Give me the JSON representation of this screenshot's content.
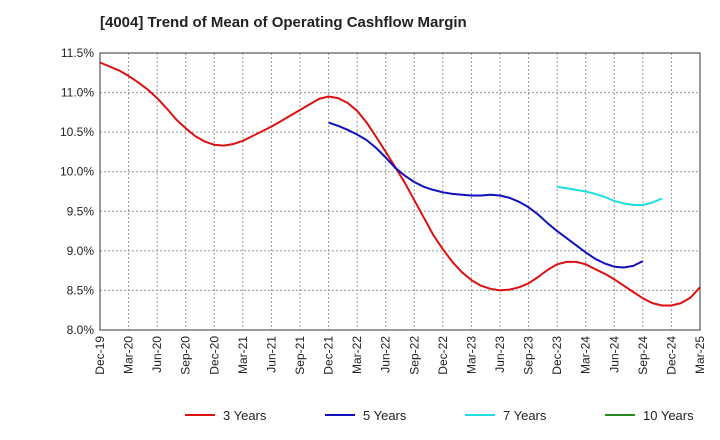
{
  "chart_data": {
    "type": "line",
    "title": "[4004]  Trend of Mean of Operating Cashflow Margin",
    "xlabel": "",
    "ylabel": "",
    "x_ticks": [
      "Dec-19",
      "Mar-20",
      "Jun-20",
      "Sep-20",
      "Dec-20",
      "Mar-21",
      "Jun-21",
      "Sep-21",
      "Dec-21",
      "Mar-22",
      "Jun-22",
      "Sep-22",
      "Dec-22",
      "Mar-23",
      "Jun-23",
      "Sep-23",
      "Dec-23",
      "Mar-24",
      "Jun-24",
      "Sep-24",
      "Dec-24",
      "Mar-25"
    ],
    "y_ticks": [
      "8.0%",
      "8.5%",
      "9.0%",
      "9.5%",
      "10.0%",
      "10.5%",
      "11.0%",
      "11.5%"
    ],
    "ylim": [
      8.0,
      11.5
    ],
    "grid": true,
    "legend_position": "bottom",
    "series": [
      {
        "name": "3 Years",
        "color": "#dd1111",
        "points": [
          [
            "Dec-19",
            11.38
          ],
          [
            "Jan-20",
            11.33
          ],
          [
            "Feb-20",
            11.28
          ],
          [
            "Mar-20",
            11.21
          ],
          [
            "Apr-20",
            11.13
          ],
          [
            "May-20",
            11.04
          ],
          [
            "Jun-20",
            10.93
          ],
          [
            "Jul-20",
            10.8
          ],
          [
            "Aug-20",
            10.66
          ],
          [
            "Sep-20",
            10.55
          ],
          [
            "Oct-20",
            10.45
          ],
          [
            "Nov-20",
            10.38
          ],
          [
            "Dec-20",
            10.34
          ],
          [
            "Jan-21",
            10.33
          ],
          [
            "Feb-21",
            10.35
          ],
          [
            "Mar-21",
            10.39
          ],
          [
            "Apr-21",
            10.45
          ],
          [
            "May-21",
            10.51
          ],
          [
            "Jun-21",
            10.57
          ],
          [
            "Jul-21",
            10.64
          ],
          [
            "Aug-21",
            10.71
          ],
          [
            "Sep-21",
            10.78
          ],
          [
            "Oct-21",
            10.85
          ],
          [
            "Nov-21",
            10.92
          ],
          [
            "Dec-21",
            10.95
          ],
          [
            "Jan-22",
            10.93
          ],
          [
            "Feb-22",
            10.87
          ],
          [
            "Mar-22",
            10.77
          ],
          [
            "Apr-22",
            10.62
          ],
          [
            "May-22",
            10.44
          ],
          [
            "Jun-22",
            10.25
          ],
          [
            "Jul-22",
            10.06
          ],
          [
            "Aug-22",
            9.86
          ],
          [
            "Sep-22",
            9.64
          ],
          [
            "Oct-22",
            9.42
          ],
          [
            "Nov-22",
            9.2
          ],
          [
            "Dec-22",
            9.02
          ],
          [
            "Jan-23",
            8.86
          ],
          [
            "Feb-23",
            8.73
          ],
          [
            "Mar-23",
            8.63
          ],
          [
            "Apr-23",
            8.56
          ],
          [
            "May-23",
            8.52
          ],
          [
            "Jun-23",
            8.5
          ],
          [
            "Jul-23",
            8.51
          ],
          [
            "Aug-23",
            8.54
          ],
          [
            "Sep-23",
            8.59
          ],
          [
            "Oct-23",
            8.67
          ],
          [
            "Nov-23",
            8.76
          ],
          [
            "Dec-23",
            8.83
          ],
          [
            "Jan-24",
            8.86
          ],
          [
            "Feb-24",
            8.86
          ],
          [
            "Mar-24",
            8.83
          ],
          [
            "Apr-24",
            8.77
          ],
          [
            "May-24",
            8.71
          ],
          [
            "Jun-24",
            8.64
          ],
          [
            "Jul-24",
            8.56
          ],
          [
            "Aug-24",
            8.48
          ],
          [
            "Sep-24",
            8.4
          ],
          [
            "Oct-24",
            8.34
          ],
          [
            "Nov-24",
            8.31
          ],
          [
            "Dec-24",
            8.31
          ],
          [
            "Jan-25",
            8.34
          ],
          [
            "Feb-25",
            8.41
          ],
          [
            "Mar-25",
            8.54
          ]
        ]
      },
      {
        "name": "5 Years",
        "color": "#1111bb",
        "points": [
          [
            "Dec-21",
            10.62
          ],
          [
            "Jan-22",
            10.58
          ],
          [
            "Feb-22",
            10.53
          ],
          [
            "Mar-22",
            10.47
          ],
          [
            "Apr-22",
            10.4
          ],
          [
            "May-22",
            10.3
          ],
          [
            "Jun-22",
            10.18
          ],
          [
            "Jul-22",
            10.05
          ],
          [
            "Aug-22",
            9.95
          ],
          [
            "Sep-22",
            9.87
          ],
          [
            "Oct-22",
            9.81
          ],
          [
            "Nov-22",
            9.77
          ],
          [
            "Dec-22",
            9.74
          ],
          [
            "Jan-23",
            9.72
          ],
          [
            "Feb-23",
            9.71
          ],
          [
            "Mar-23",
            9.7
          ],
          [
            "Apr-23",
            9.7
          ],
          [
            "May-23",
            9.71
          ],
          [
            "Jun-23",
            9.7
          ],
          [
            "Jul-23",
            9.67
          ],
          [
            "Aug-23",
            9.62
          ],
          [
            "Sep-23",
            9.55
          ],
          [
            "Oct-23",
            9.46
          ],
          [
            "Nov-23",
            9.35
          ],
          [
            "Dec-23",
            9.25
          ],
          [
            "Jan-24",
            9.16
          ],
          [
            "Feb-24",
            9.07
          ],
          [
            "Mar-24",
            8.98
          ],
          [
            "Apr-24",
            8.9
          ],
          [
            "May-24",
            8.84
          ],
          [
            "Jun-24",
            8.8
          ],
          [
            "Jul-24",
            8.79
          ],
          [
            "Aug-24",
            8.81
          ],
          [
            "Sep-24",
            8.87
          ]
        ]
      },
      {
        "name": "7 Years",
        "color": "#22dddd",
        "points": [
          [
            "Dec-23",
            9.81
          ],
          [
            "Jan-24",
            9.79
          ],
          [
            "Feb-24",
            9.77
          ],
          [
            "Mar-24",
            9.75
          ],
          [
            "Apr-24",
            9.72
          ],
          [
            "May-24",
            9.68
          ],
          [
            "Jun-24",
            9.63
          ],
          [
            "Jul-24",
            9.6
          ],
          [
            "Aug-24",
            9.58
          ],
          [
            "Sep-24",
            9.58
          ],
          [
            "Oct-24",
            9.61
          ],
          [
            "Nov-24",
            9.66
          ]
        ]
      },
      {
        "name": "10 Years",
        "color": "#228822",
        "points": []
      }
    ]
  }
}
